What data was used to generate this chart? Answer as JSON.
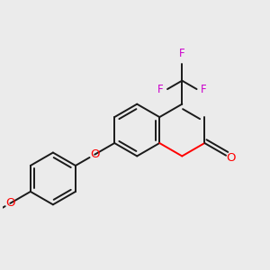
{
  "bg_color": "#ebebeb",
  "bond_color": "#1a1a1a",
  "oxygen_color": "#ff0000",
  "fluorine_color": "#cc00cc",
  "lw": 1.4,
  "figsize": [
    3.0,
    3.0
  ],
  "dpi": 100,
  "xlim": [
    -1.55,
    1.15
  ],
  "ylim": [
    -1.35,
    1.05
  ]
}
